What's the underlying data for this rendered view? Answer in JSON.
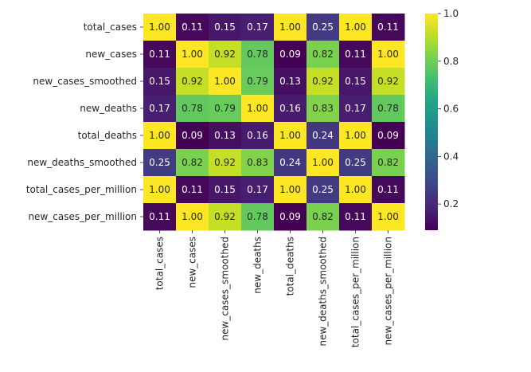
{
  "chart_data": {
    "type": "heatmap",
    "title": "",
    "xlabel": "",
    "ylabel": "",
    "row_labels": [
      "total_cases",
      "new_cases",
      "new_cases_smoothed",
      "new_deaths",
      "total_deaths",
      "new_deaths_smoothed",
      "total_cases_per_million",
      "new_cases_per_million"
    ],
    "col_labels": [
      "total_cases",
      "new_cases",
      "new_cases_smoothed",
      "new_deaths",
      "total_deaths",
      "new_deaths_smoothed",
      "total_cases_per_million",
      "new_cases_per_million"
    ],
    "values": [
      [
        1.0,
        0.11,
        0.15,
        0.17,
        1.0,
        0.25,
        1.0,
        0.11
      ],
      [
        0.11,
        1.0,
        0.92,
        0.78,
        0.09,
        0.82,
        0.11,
        1.0
      ],
      [
        0.15,
        0.92,
        1.0,
        0.79,
        0.13,
        0.92,
        0.15,
        0.92
      ],
      [
        0.17,
        0.78,
        0.79,
        1.0,
        0.16,
        0.83,
        0.17,
        0.78
      ],
      [
        1.0,
        0.09,
        0.13,
        0.16,
        1.0,
        0.24,
        1.0,
        0.09
      ],
      [
        0.25,
        0.82,
        0.92,
        0.83,
        0.24,
        1.0,
        0.25,
        0.82
      ],
      [
        1.0,
        0.11,
        0.15,
        0.17,
        1.0,
        0.25,
        1.0,
        0.11
      ],
      [
        0.11,
        1.0,
        0.92,
        0.78,
        0.09,
        0.82,
        0.11,
        1.0
      ]
    ],
    "value_format": "2-decimal",
    "colormap": "viridis",
    "colorbar": {
      "range": [
        0.09,
        1.0
      ],
      "ticks": [
        0.2,
        0.4,
        0.6,
        0.8,
        1.0
      ],
      "tick_labels": [
        "0.2",
        "0.4",
        "0.6",
        "0.8",
        "1.0"
      ]
    },
    "colors": {
      "annotation_light": "#ffffff",
      "annotation_dark": "#262626",
      "axis_text": "#262626"
    }
  }
}
